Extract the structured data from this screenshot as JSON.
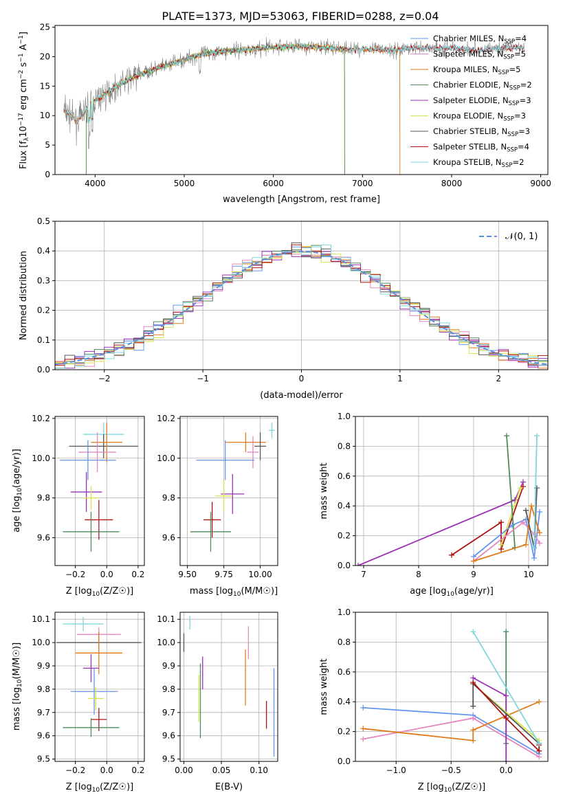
{
  "figure": {
    "title": "PLATE=1373, MJD=53063, FIBERID=0288, z=0.04"
  },
  "colors": {
    "chabrier_miles": "#6495ed",
    "salpeter_miles": "#e487c0",
    "kroupa_miles": "#e07b1a",
    "chabrier_elodie": "#4e8b5a",
    "salpeter_elodie": "#9b30b8",
    "kroupa_elodie": "#d6e34a",
    "chabrier_stelib": "#555555",
    "salpeter_stelib": "#b01010",
    "kroupa_stelib": "#7fd6dc",
    "normal_curve": "#5b8fdd"
  },
  "chart_data": [
    {
      "id": "spectrum",
      "type": "line",
      "xlabel": "wavelength [Angstrom, rest frame]",
      "ylabel": "Flux [f",
      "xlim": [
        3550,
        9080
      ],
      "ylim": [
        0,
        25.3
      ],
      "xticks": [
        4000,
        5000,
        6000,
        7000,
        8000,
        9000
      ],
      "yticks": [
        0,
        5,
        10,
        15,
        20,
        25
      ],
      "continuum": [
        [
          3650,
          11
        ],
        [
          3800,
          9
        ],
        [
          3950,
          12
        ],
        [
          4100,
          13.5
        ],
        [
          4300,
          15.5
        ],
        [
          4500,
          17
        ],
        [
          4800,
          18.5
        ],
        [
          5000,
          19.5
        ],
        [
          5200,
          20.5
        ],
        [
          5500,
          21
        ],
        [
          5800,
          21.3
        ],
        [
          6000,
          21.6
        ],
        [
          6300,
          21.8
        ],
        [
          6500,
          21.6
        ],
        [
          6800,
          21.3
        ],
        [
          7000,
          21.3
        ],
        [
          7300,
          21.1
        ],
        [
          7600,
          21.5
        ],
        [
          8000,
          21.5
        ],
        [
          8300,
          21.1
        ],
        [
          8600,
          21.5
        ],
        [
          8800,
          21.5
        ]
      ],
      "legend": [
        {
          "name": "Chabrier MILES, N",
          "sub": "SSP",
          "tail": "=4",
          "color_key": "chabrier_miles"
        },
        {
          "name": "Salpeter MILES, N",
          "sub": "SSP",
          "tail": "=5",
          "color_key": "salpeter_miles"
        },
        {
          "name": "Kroupa MILES, N",
          "sub": "SSP",
          "tail": "=5",
          "color_key": "kroupa_miles"
        },
        {
          "name": "Chabrier ELODIE, N",
          "sub": "SSP",
          "tail": "=2",
          "color_key": "chabrier_elodie"
        },
        {
          "name": "Salpeter ELODIE, N",
          "sub": "SSP",
          "tail": "=3",
          "color_key": "salpeter_elodie"
        },
        {
          "name": "Kroupa ELODIE, N",
          "sub": "SSP",
          "tail": "=3",
          "color_key": "kroupa_elodie"
        },
        {
          "name": "Chabrier STELIB, N",
          "sub": "SSP",
          "tail": "=3",
          "color_key": "chabrier_stelib"
        },
        {
          "name": "Salpeter STELIB, N",
          "sub": "SSP",
          "tail": "=4",
          "color_key": "salpeter_stelib"
        },
        {
          "name": "Kroupa STELIB, N",
          "sub": "SSP",
          "tail": "=2",
          "color_key": "kroupa_stelib"
        }
      ],
      "model_ends": [
        {
          "color_key": "kroupa_miles",
          "x0": 3650,
          "x1": 7420
        },
        {
          "color_key": "kroupa_elodie",
          "x0": 3900,
          "x1": 6800
        },
        {
          "color_key": "chabrier_elodie",
          "x0": 3900,
          "x1": 6800
        },
        {
          "color_key": "salpeter_stelib",
          "x0": 3650,
          "x1": 8800
        },
        {
          "color_key": "kroupa_stelib",
          "x0": 3650,
          "x1": 8800
        }
      ]
    },
    {
      "id": "residuals",
      "type": "histogram",
      "xlabel": "(data-model)/error",
      "ylabel": "Normed distribution",
      "xlim": [
        -2.5,
        2.5
      ],
      "ylim": [
        0,
        0.5
      ],
      "xticks": [
        -2,
        -1,
        0,
        1,
        2
      ],
      "yticks": [
        0.0,
        0.1,
        0.2,
        0.3,
        0.4,
        0.5
      ],
      "bin_width": 0.1,
      "legend_label": "𝒩(0, 1)"
    },
    {
      "id": "z_age",
      "type": "scatter",
      "xlabel": "Z [log",
      "ylabel": "age  [log",
      "xlim": [
        -0.33,
        0.24
      ],
      "ylim": [
        9.46,
        10.21
      ],
      "xticks": [
        -0.2,
        0.0,
        0.2
      ],
      "yticks": [
        9.6,
        9.8,
        10.0,
        10.2
      ],
      "points": [
        {
          "x": -0.02,
          "y": 10.12,
          "ex": 0.13,
          "ey": 0.06,
          "color_key": "kroupa_stelib"
        },
        {
          "x": -0.02,
          "y": 10.06,
          "ex": 0.22,
          "ey": 0.06,
          "color_key": "chabrier_stelib"
        },
        {
          "x": 0.0,
          "y": 10.08,
          "ex": 0.1,
          "ey": 0.1,
          "color_key": "kroupa_miles"
        },
        {
          "x": -0.06,
          "y": 10.03,
          "ex": 0.12,
          "ey": 0.1,
          "color_key": "salpeter_miles"
        },
        {
          "x": -0.12,
          "y": 9.99,
          "ex": 0.18,
          "ey": 0.1,
          "color_key": "chabrier_miles"
        },
        {
          "x": -0.13,
          "y": 9.83,
          "ex": 0.1,
          "ey": 0.1,
          "color_key": "salpeter_elodie"
        },
        {
          "x": -0.1,
          "y": 9.8,
          "ex": 0.05,
          "ey": 0.06,
          "color_key": "kroupa_elodie"
        },
        {
          "x": -0.05,
          "y": 9.69,
          "ex": 0.09,
          "ey": 0.1,
          "color_key": "salpeter_stelib"
        },
        {
          "x": -0.1,
          "y": 9.63,
          "ex": 0.18,
          "ey": 0.1,
          "color_key": "chabrier_elodie"
        }
      ]
    },
    {
      "id": "mass_age",
      "type": "scatter",
      "xlabel": "mass [log",
      "ylabel": "",
      "xlim": [
        9.45,
        10.12
      ],
      "ylim": [
        9.46,
        10.21
      ],
      "xticks": [
        9.5,
        9.75,
        10.0
      ],
      "yticks": [
        9.6,
        9.8,
        10.0,
        10.2
      ],
      "points": [
        {
          "x": 10.08,
          "y": 10.14,
          "ex": 0.02,
          "ey": 0.04,
          "color_key": "kroupa_stelib"
        },
        {
          "x": 9.9,
          "y": 10.08,
          "ex": 0.14,
          "ey": 0.05,
          "color_key": "kroupa_miles"
        },
        {
          "x": 10.0,
          "y": 10.06,
          "ex": 0.04,
          "ey": 0.07,
          "color_key": "chabrier_stelib"
        },
        {
          "x": 9.95,
          "y": 10.03,
          "ex": 0.04,
          "ey": 0.08,
          "color_key": "salpeter_miles"
        },
        {
          "x": 9.76,
          "y": 9.99,
          "ex": 0.2,
          "ey": 0.1,
          "color_key": "chabrier_miles"
        },
        {
          "x": 9.81,
          "y": 9.82,
          "ex": 0.08,
          "ey": 0.1,
          "color_key": "salpeter_elodie"
        },
        {
          "x": 9.75,
          "y": 9.81,
          "ex": 0.06,
          "ey": 0.08,
          "color_key": "kroupa_elodie"
        },
        {
          "x": 9.67,
          "y": 9.69,
          "ex": 0.06,
          "ey": 0.09,
          "color_key": "salpeter_stelib"
        },
        {
          "x": 9.66,
          "y": 9.63,
          "ex": 0.14,
          "ey": 0.1,
          "color_key": "chabrier_elodie"
        }
      ]
    },
    {
      "id": "age_weight",
      "type": "line",
      "xlabel": "age  [log",
      "ylabel": "mass weight",
      "xlim": [
        6.85,
        10.35
      ],
      "ylim": [
        0,
        1
      ],
      "xticks": [
        7,
        8,
        9,
        10
      ],
      "yticks": [
        0.0,
        0.2,
        0.4,
        0.6,
        0.8,
        1.0
      ],
      "series": [
        {
          "color_key": "salpeter_elodie",
          "points": [
            [
              6.9,
              0.0
            ],
            [
              9.75,
              0.44
            ],
            [
              9.9,
              0.56
            ]
          ]
        },
        {
          "color_key": "salpeter_stelib",
          "points": [
            [
              8.6,
              0.07
            ],
            [
              9.5,
              0.29
            ],
            [
              9.5,
              0.11
            ],
            [
              9.9,
              0.53
            ]
          ]
        },
        {
          "color_key": "kroupa_elodie",
          "points": [
            [
              9.5,
              0.14
            ],
            [
              9.85,
              0.52
            ]
          ]
        },
        {
          "color_key": "chabrier_elodie",
          "points": [
            [
              9.75,
              0.12
            ],
            [
              9.6,
              0.87
            ]
          ]
        },
        {
          "color_key": "chabrier_miles",
          "points": [
            [
              9.0,
              0.06
            ],
            [
              9.7,
              0.27
            ],
            [
              9.95,
              0.31
            ],
            [
              10.1,
              0.05
            ],
            [
              10.2,
              0.36
            ]
          ]
        },
        {
          "color_key": "salpeter_miles",
          "points": [
            [
              9.0,
              0.03
            ],
            [
              9.9,
              0.29
            ],
            [
              10.1,
              0.21
            ],
            [
              10.2,
              0.15
            ]
          ]
        },
        {
          "color_key": "kroupa_miles",
          "points": [
            [
              9.0,
              0.03
            ],
            [
              9.95,
              0.14
            ],
            [
              10.05,
              0.4
            ],
            [
              10.2,
              0.22
            ]
          ]
        },
        {
          "color_key": "chabrier_stelib",
          "points": [
            [
              9.95,
              0.37
            ],
            [
              10.1,
              0.12
            ],
            [
              10.15,
              0.52
            ]
          ]
        },
        {
          "color_key": "kroupa_stelib",
          "points": [
            [
              10.1,
              0.12
            ],
            [
              10.15,
              0.87
            ]
          ]
        }
      ]
    },
    {
      "id": "z_mass",
      "type": "scatter",
      "xlabel": "Z [log",
      "ylabel": "mass [log",
      "xlim": [
        -0.33,
        0.24
      ],
      "ylim": [
        9.49,
        10.13
      ],
      "xticks": [
        -0.2,
        0.0,
        0.2
      ],
      "yticks": [
        9.5,
        9.6,
        9.7,
        9.8,
        9.9,
        10.0,
        10.1
      ],
      "points": [
        {
          "x": -0.15,
          "y": 10.08,
          "ex": 0.13,
          "ey": 0.03,
          "color_key": "kroupa_stelib"
        },
        {
          "x": -0.05,
          "y": 10.0,
          "ex": 0.27,
          "ey": 0.04,
          "color_key": "chabrier_stelib"
        },
        {
          "x": -0.05,
          "y": 10.035,
          "ex": 0.14,
          "ey": 0.03,
          "color_key": "salpeter_miles"
        },
        {
          "x": -0.05,
          "y": 9.955,
          "ex": 0.15,
          "ey": 0.09,
          "color_key": "kroupa_miles"
        },
        {
          "x": -0.1,
          "y": 9.89,
          "ex": 0.05,
          "ey": 0.06,
          "color_key": "salpeter_elodie"
        },
        {
          "x": -0.08,
          "y": 9.79,
          "ex": 0.15,
          "ey": 0.1,
          "color_key": "chabrier_miles"
        },
        {
          "x": -0.07,
          "y": 9.76,
          "ex": 0.05,
          "ey": 0.05,
          "color_key": "kroupa_elodie"
        },
        {
          "x": -0.05,
          "y": 9.67,
          "ex": 0.05,
          "ey": 0.05,
          "color_key": "salpeter_stelib"
        },
        {
          "x": -0.1,
          "y": 9.635,
          "ex": 0.18,
          "ey": 0.04,
          "color_key": "chabrier_elodie"
        }
      ]
    },
    {
      "id": "ebv_mass",
      "type": "scatter",
      "xlabel": "E(B-V)",
      "ylabel": "",
      "xlim": [
        -0.005,
        0.125
      ],
      "ylim": [
        9.49,
        10.13
      ],
      "xticks": [
        0.0,
        0.05,
        0.1
      ],
      "yticks": [
        9.5,
        9.6,
        9.7,
        9.8,
        9.9,
        10.0,
        10.1
      ],
      "points": [
        {
          "x": 0.008,
          "y": 10.085,
          "ey": 0.03,
          "color_key": "kroupa_stelib"
        },
        {
          "x": 0.0,
          "y": 10.0,
          "ey": 0.04,
          "color_key": "chabrier_stelib"
        },
        {
          "x": 0.086,
          "y": 10.0,
          "ey": 0.07,
          "color_key": "salpeter_miles"
        },
        {
          "x": 0.082,
          "y": 9.85,
          "ey": 0.12,
          "color_key": "kroupa_miles"
        },
        {
          "x": 0.025,
          "y": 9.87,
          "ey": 0.07,
          "color_key": "salpeter_elodie"
        },
        {
          "x": 0.12,
          "y": 9.7,
          "ey": 0.19,
          "color_key": "chabrier_miles"
        },
        {
          "x": 0.02,
          "y": 9.76,
          "ey": 0.1,
          "color_key": "kroupa_elodie"
        },
        {
          "x": 0.11,
          "y": 9.69,
          "ey": 0.06,
          "color_key": "salpeter_stelib"
        },
        {
          "x": 0.022,
          "y": 9.75,
          "ey": 0.16,
          "color_key": "chabrier_elodie"
        }
      ]
    },
    {
      "id": "z_weight",
      "type": "line",
      "xlabel": "Z [log",
      "ylabel": "mass weight",
      "xlim": [
        -1.37,
        0.38
      ],
      "ylim": [
        0,
        1
      ],
      "xticks": [
        -1.0,
        -0.5,
        0.0
      ],
      "yticks": [
        0.0,
        0.2,
        0.4,
        0.6,
        0.8,
        1.0
      ],
      "series": [
        {
          "color_key": "chabrier_miles",
          "points": [
            [
              -1.3,
              0.36
            ],
            [
              -0.3,
              0.31
            ],
            [
              0.3,
              0.05
            ]
          ]
        },
        {
          "color_key": "salpeter_miles",
          "points": [
            [
              -1.3,
              0.15
            ],
            [
              -0.3,
              0.29
            ],
            [
              0.3,
              0.03
            ]
          ]
        },
        {
          "color_key": "kroupa_miles",
          "points": [
            [
              -1.3,
              0.22
            ],
            [
              -0.3,
              0.14
            ],
            [
              -0.3,
              0.21
            ],
            [
              0.3,
              0.4
            ]
          ]
        },
        {
          "color_key": "chabrier_elodie",
          "points": [
            [
              0.0,
              0.12
            ],
            [
              0.0,
              0.87
            ]
          ]
        },
        {
          "color_key": "salpeter_elodie",
          "points": [
            [
              -0.3,
              0.56
            ],
            [
              0.0,
              0.44
            ],
            [
              0.0,
              0.0
            ]
          ]
        },
        {
          "color_key": "kroupa_elodie",
          "points": [
            [
              -0.3,
              0.52
            ],
            [
              0.3,
              0.14
            ]
          ]
        },
        {
          "color_key": "chabrier_stelib",
          "points": [
            [
              -0.3,
              0.37
            ],
            [
              -0.3,
              0.52
            ],
            [
              0.3,
              0.12
            ]
          ]
        },
        {
          "color_key": "salpeter_stelib",
          "points": [
            [
              -0.3,
              0.53
            ],
            [
              0.0,
              0.29
            ],
            [
              0.3,
              0.07
            ],
            [
              0.3,
              0.11
            ]
          ]
        },
        {
          "color_key": "kroupa_stelib",
          "points": [
            [
              -0.3,
              0.87
            ],
            [
              0.3,
              0.12
            ]
          ]
        }
      ]
    }
  ]
}
